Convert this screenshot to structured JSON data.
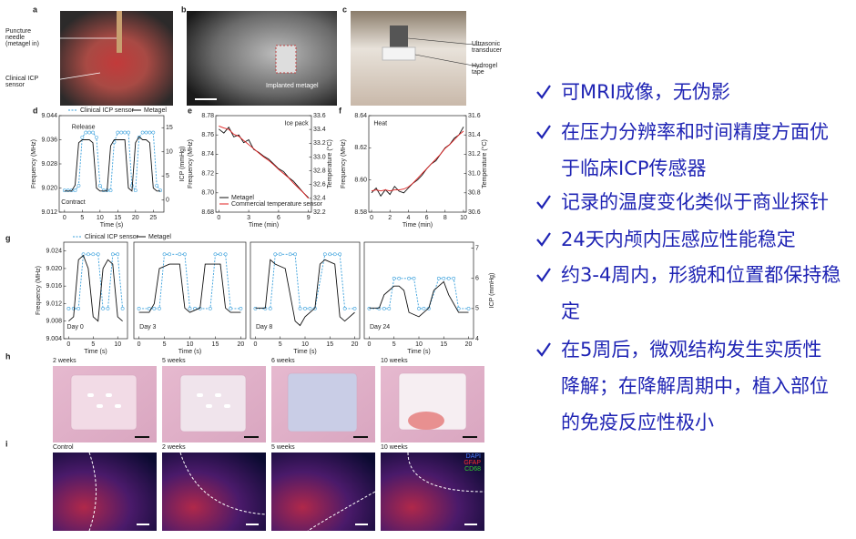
{
  "slide": {
    "bullets": [
      [
        "可MRI成像，无伪影"
      ],
      [
        "在压力分辨率和时间精度方面优",
        "于临床ICP传感器"
      ],
      [
        "记录的温度变化类似于商业探针"
      ],
      [
        "24天内颅内压感应性能稳定"
      ],
      [
        "约3-4周内，形貌和位置都保持稳",
        "定"
      ],
      [
        "在5周后，微观结构发生实质性",
        "降解；在降解周期中，植入部位",
        "的免疫反应性极小"
      ]
    ]
  },
  "figure": {
    "a": {
      "label": "a",
      "notes": [
        [
          "Puncture",
          "needle",
          "(metagel in)"
        ],
        [
          "Clinical ICP",
          "sensor"
        ]
      ]
    },
    "b": {
      "label": "b",
      "note": "Implanted metagel"
    },
    "c": {
      "label": "c",
      "notes": [
        [
          "Ultrasonic",
          "transducer"
        ],
        [
          "Hydrogel",
          "tape"
        ]
      ]
    },
    "charts": [
      {
        "label": "d",
        "type": "line",
        "legend": "top",
        "annotations": [
          "Release",
          "Contract"
        ],
        "xlabel": "Time (s)",
        "ylabel": "Frequency (MHz)",
        "y2label": "ICP (mmHg)",
        "xlim": [
          -1.5,
          28
        ],
        "xticks": [
          0,
          5,
          10,
          15,
          20,
          25
        ],
        "ylim": [
          9.012,
          9.044
        ],
        "yticks": [
          9.012,
          {
            "value": 9.02,
            "label": "9.020"
          },
          9.028,
          9.036,
          9.044
        ],
        "y2lim": [
          -2.5,
          17.5
        ],
        "y2ticks": [
          0,
          5,
          10,
          15
        ],
        "series": [
          {
            "name": "Clinical ICP sensor",
            "color": "#3aa0dc",
            "axis": "y2",
            "marker": "circle",
            "dashed": true,
            "x": [
              0,
              1,
              2,
              3,
              4,
              5,
              6,
              7,
              8,
              9,
              10,
              11,
              12,
              13,
              14,
              15,
              16,
              17,
              18,
              19,
              20,
              21,
              22,
              23,
              24,
              25,
              26,
              27
            ],
            "values": [
              2,
              2,
              2,
              2,
              3,
              13,
              14,
              14,
              14,
              13,
              3,
              2,
              2,
              2,
              12,
              14,
              14,
              14,
              14,
              3,
              2,
              13,
              14,
              14,
              14,
              14,
              3,
              2
            ]
          },
          {
            "name": "Metagel",
            "color": "#111111",
            "x": [
              0,
              1,
              2,
              3,
              4,
              5,
              6,
              7,
              8,
              9,
              10,
              11,
              12,
              13,
              14,
              15,
              16,
              17,
              18,
              19,
              20,
              21,
              22,
              23,
              24,
              25,
              26,
              27
            ],
            "values": [
              9.019,
              9.019,
              9.019,
              9.021,
              9.035,
              9.036,
              9.036,
              9.036,
              9.035,
              9.02,
              9.019,
              9.019,
              9.019,
              9.034,
              9.036,
              9.036,
              9.036,
              9.036,
              9.02,
              9.019,
              9.035,
              9.037,
              9.036,
              9.036,
              9.035,
              9.02,
              9.019,
              9.019
            ]
          }
        ]
      },
      {
        "label": "e",
        "type": "line",
        "legend": "lower left",
        "annotations": [
          "Ice pack"
        ],
        "xlabel": "Time (min)",
        "ylabel": "Frequency (MHz)",
        "y2label": "Temperature (°C)",
        "xlim": [
          -0.3,
          9.3
        ],
        "xticks": [
          0,
          3,
          6,
          9
        ],
        "ylim": [
          8.68,
          8.78
        ],
        "yticks": [
          8.68,
          {
            "value": 8.7,
            "label": "8.70"
          },
          8.72,
          8.74,
          8.76,
          8.78
        ],
        "y2lim": [
          32.2,
          33.6
        ],
        "y2ticks": [
          32.2,
          32.4,
          32.6,
          32.8,
          {
            "value": 33,
            "label": "33.0"
          },
          33.2,
          33.4,
          33.6
        ],
        "series": [
          {
            "name": "Metagel",
            "color": "#111111",
            "x": [
              0,
              0.5,
              1,
              1.5,
              2,
              2.5,
              3,
              3.5,
              4,
              4.5,
              5,
              5.5,
              6,
              6.5,
              7,
              7.5,
              8,
              8.5,
              9
            ],
            "values": [
              8.766,
              8.762,
              8.768,
              8.758,
              8.76,
              8.752,
              8.755,
              8.745,
              8.742,
              8.738,
              8.735,
              8.73,
              8.725,
              8.722,
              8.716,
              8.712,
              8.706,
              8.7,
              8.695
            ]
          },
          {
            "name": "Commercial temperature sensor",
            "color": "#e02020",
            "axis": "y2",
            "x": [
              0,
              0.5,
              1,
              1.5,
              2,
              2.5,
              3,
              3.5,
              4,
              4.5,
              5,
              5.5,
              6,
              6.5,
              7,
              7.5,
              8,
              8.5,
              9
            ],
            "values": [
              33.45,
              33.42,
              33.4,
              33.33,
              33.3,
              33.24,
              33.18,
              33.12,
              33.06,
              33,
              32.95,
              32.89,
              32.82,
              32.76,
              32.7,
              32.62,
              32.55,
              32.48,
              32.4
            ]
          }
        ]
      },
      {
        "label": "f",
        "type": "line",
        "annotations": [
          "Heat"
        ],
        "xlabel": "Time (min)",
        "ylabel": "Frequency (MHz)",
        "y2label": "Temperature (°C)",
        "xlim": [
          -0.3,
          10.3
        ],
        "xticks": [
          0,
          2,
          4,
          6,
          8,
          10
        ],
        "ylim": [
          8.58,
          8.64
        ],
        "yticks": [
          8.58,
          {
            "value": 8.6,
            "label": "8.60"
          },
          8.62,
          8.64
        ],
        "y2lim": [
          30.6,
          31.6
        ],
        "y2ticks": [
          30.6,
          30.8,
          {
            "value": 31,
            "label": "31.0"
          },
          31.2,
          31.4,
          31.6
        ],
        "series": [
          {
            "color": "#111111",
            "x": [
              0,
              0.5,
              1,
              1.5,
              2,
              2.5,
              3,
              3.5,
              4,
              4.5,
              5,
              5.5,
              6,
              6.5,
              7,
              7.5,
              8,
              8.5,
              9,
              9.5,
              10
            ],
            "values": [
              8.592,
              8.595,
              8.59,
              8.594,
              8.591,
              8.596,
              8.593,
              8.592,
              8.595,
              8.598,
              8.6,
              8.603,
              8.607,
              8.61,
              8.612,
              8.616,
              8.62,
              8.622,
              8.626,
              8.628,
              8.633
            ]
          },
          {
            "color": "#e02020",
            "axis": "y2",
            "x": [
              0,
              0.5,
              1,
              1.5,
              2,
              2.5,
              3,
              3.5,
              4,
              4.5,
              5,
              5.5,
              6,
              6.5,
              7,
              7.5,
              8,
              8.5,
              9,
              9.5,
              10
            ],
            "values": [
              30.82,
              30.83,
              30.82,
              30.83,
              30.82,
              30.83,
              30.83,
              30.84,
              30.86,
              30.9,
              30.95,
              31,
              31.05,
              31.1,
              31.15,
              31.2,
              31.26,
              31.3,
              31.35,
              31.4,
              31.44
            ]
          }
        ]
      },
      {
        "label": "g",
        "type": "line",
        "legend": "top",
        "annotations": [
          "Day 0"
        ],
        "xlabel": "Time (s)",
        "ylabel": "Frequency (MHz)",
        "xlim": [
          -1,
          12
        ],
        "xticks": [
          0,
          5,
          10
        ],
        "ylim": [
          9.004,
          9.026
        ],
        "yticks": [
          9.004,
          9.008,
          9.012,
          9.016,
          {
            "value": 9.02,
            "label": "9.020"
          },
          9.024
        ],
        "y2lim": [
          4,
          7.2
        ],
        "series": [
          {
            "name": "Clinical ICP sensor",
            "color": "#3aa0dc",
            "axis": "y2",
            "marker": "circle",
            "dashed": true,
            "x": [
              0,
              1,
              2,
              3,
              4,
              5,
              6,
              7,
              8,
              9,
              10,
              11
            ],
            "values": [
              5,
              5,
              5,
              6.8,
              6.8,
              6.8,
              6.8,
              5,
              5,
              6.8,
              6.8,
              5
            ]
          },
          {
            "name": "Metagel",
            "color": "#111111",
            "x": [
              0,
              1,
              2,
              3,
              4,
              5,
              6,
              7,
              8,
              9,
              10,
              11
            ],
            "values": [
              9.008,
              9.009,
              9.022,
              9.023,
              9.02,
              9.009,
              9.008,
              9.02,
              9.022,
              9.021,
              9.009,
              9.008
            ]
          }
        ]
      },
      {
        "type": "line",
        "annotations": [
          "Day 3"
        ],
        "xlabel": "Time (s)",
        "xlim": [
          -1,
          21
        ],
        "xticks": [
          0,
          5,
          10,
          15,
          20
        ],
        "ylim": [
          9.004,
          9.026
        ],
        "y2lim": [
          4,
          7.2
        ],
        "series": [
          {
            "color": "#3aa0dc",
            "axis": "y2",
            "marker": "circle",
            "dashed": true,
            "x": [
              0,
              2,
              3,
              4,
              5,
              6,
              8,
              9,
              10,
              11,
              12,
              14,
              15,
              16,
              17,
              18,
              20
            ],
            "values": [
              5,
              5,
              5,
              5,
              6.8,
              6.8,
              6.8,
              6.8,
              5,
              5,
              5,
              5,
              6.8,
              6.8,
              6.8,
              5,
              5
            ]
          },
          {
            "color": "#111111",
            "x": [
              0,
              2,
              3,
              4,
              6,
              8,
              9,
              10,
              12,
              13,
              14,
              16,
              17,
              18,
              20
            ],
            "values": [
              9.01,
              9.01,
              9.012,
              9.02,
              9.021,
              9.021,
              9.011,
              9.01,
              9.011,
              9.021,
              9.021,
              9.021,
              9.011,
              9.01,
              9.01
            ]
          }
        ]
      },
      {
        "type": "line",
        "annotations": [
          "Day 8"
        ],
        "xlabel": "Time (s)",
        "xlim": [
          -1,
          21
        ],
        "xticks": [
          0,
          5,
          10,
          15,
          20
        ],
        "ylim": [
          9.004,
          9.026
        ],
        "y2lim": [
          4,
          7.2
        ],
        "series": [
          {
            "color": "#3aa0dc",
            "axis": "y2",
            "marker": "circle",
            "dashed": true,
            "x": [
              0,
              2,
              3,
              4,
              5,
              7,
              8,
              9,
              10,
              11,
              12,
              14,
              15,
              16,
              17,
              18,
              20
            ],
            "values": [
              5,
              5,
              5,
              6.8,
              6.8,
              6.8,
              6.8,
              5,
              5,
              5,
              5,
              6.8,
              6.8,
              6.8,
              6.8,
              5,
              5
            ]
          },
          {
            "color": "#111111",
            "x": [
              0,
              2,
              3,
              4,
              6,
              8,
              9,
              10,
              12,
              13,
              14,
              16,
              17,
              18,
              20
            ],
            "values": [
              9.011,
              9.011,
              9.022,
              9.021,
              9.02,
              9.008,
              9.007,
              9.009,
              9.011,
              9.021,
              9.022,
              9.021,
              9.009,
              9.008,
              9.01
            ]
          }
        ]
      },
      {
        "type": "line",
        "annotations": [
          "Day 24"
        ],
        "xlabel": "Time (s)",
        "y2label": "ICP (mmHg)",
        "xlim": [
          -1,
          21
        ],
        "xticks": [
          0,
          5,
          10,
          15,
          20
        ],
        "ylim": [
          9.004,
          9.026
        ],
        "y2lim": [
          4,
          7.2
        ],
        "y2ticks": [
          4,
          5,
          6,
          7
        ],
        "series": [
          {
            "color": "#3aa0dc",
            "axis": "y2",
            "marker": "circle",
            "dashed": true,
            "x": [
              0,
              2,
              3,
              4,
              5,
              6,
              8,
              9,
              10,
              11,
              12,
              14,
              15,
              16,
              17,
              18,
              20
            ],
            "values": [
              5,
              5,
              5,
              5,
              6,
              6,
              6,
              6,
              5,
              5,
              5,
              6,
              6,
              6,
              6,
              5,
              5
            ]
          },
          {
            "color": "#111111",
            "x": [
              0,
              2,
              3,
              4,
              5,
              6,
              7,
              8,
              10,
              12,
              13,
              14,
              15,
              16,
              17,
              18,
              20
            ],
            "values": [
              9.011,
              9.011,
              9.014,
              9.015,
              9.016,
              9.016,
              9.015,
              9.01,
              9.009,
              9.011,
              9.015,
              9.016,
              9.017,
              9.014,
              9.012,
              9.01,
              9.01
            ]
          }
        ]
      }
    ],
    "h": {
      "label": "h",
      "captions": [
        "2 weeks",
        "5 weeks",
        "6 weeks",
        "10 weeks"
      ]
    },
    "i": {
      "label": "i",
      "captions": [
        "Control",
        "2 weeks",
        "5 weeks",
        "10 weeks"
      ],
      "stains": [
        {
          "name": "DAPI",
          "color": "#4a7cff"
        },
        {
          "name": "GFAP",
          "color": "#ff3030"
        },
        {
          "name": "CD68",
          "color": "#30d030"
        }
      ]
    }
  }
}
